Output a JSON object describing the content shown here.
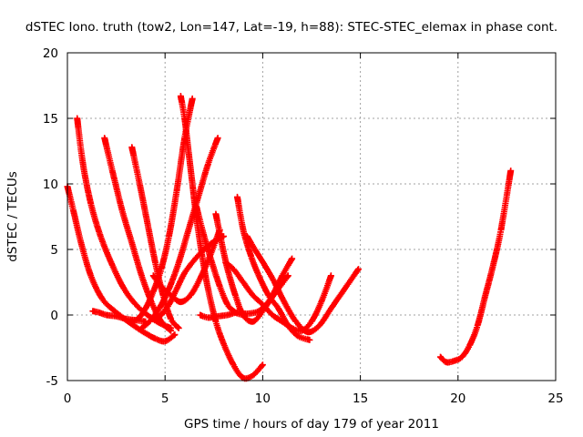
{
  "chart_data": {
    "type": "scatter",
    "title": "dSTEC Iono. truth (tow2, Lon=147, Lat=-19, h=88): STEC-STEC_elemax in phase cont.",
    "xlabel": "GPS time / hours of day 179 of year 2011",
    "ylabel": "dSTEC  / TECUs",
    "xlim": [
      0,
      25
    ],
    "ylim": [
      -5,
      20
    ],
    "xticks": [
      "0",
      "5",
      "10",
      "15",
      "20",
      "25"
    ],
    "yticks": [
      "-5",
      "0",
      "5",
      "10",
      "15",
      "20"
    ],
    "grid": true,
    "marker": "+",
    "color": "#ff0000",
    "series": [
      {
        "x": [
          0.0,
          0.3,
          0.7,
          1.2,
          1.8,
          2.5,
          3.2,
          3.9,
          4.5,
          5.0,
          5.5
        ],
        "y": [
          9.8,
          8.0,
          5.5,
          3.0,
          1.2,
          0.2,
          -0.6,
          -1.3,
          -1.8,
          -2.0,
          -1.5
        ]
      },
      {
        "x": [
          0.5,
          0.8,
          1.2,
          1.7,
          2.3,
          2.9,
          3.5,
          4.1,
          4.7,
          5.3
        ],
        "y": [
          15.0,
          11.5,
          8.5,
          6.0,
          3.8,
          2.0,
          0.8,
          0.0,
          -0.6,
          -1.0
        ]
      },
      {
        "x": [
          1.3,
          1.6,
          2.0,
          2.5,
          3.0,
          3.5,
          4.0
        ],
        "y": [
          0.3,
          0.2,
          0.0,
          -0.1,
          -0.3,
          -0.4,
          -0.5
        ]
      },
      {
        "x": [
          1.9,
          2.3,
          2.8,
          3.3,
          3.8,
          4.3,
          4.8,
          5.3
        ],
        "y": [
          13.5,
          11.0,
          8.0,
          5.5,
          3.0,
          1.0,
          -0.5,
          -1.2
        ]
      },
      {
        "x": [
          3.3,
          3.7,
          4.1,
          4.5,
          4.9,
          5.3,
          5.7
        ],
        "y": [
          12.8,
          10.0,
          7.0,
          4.0,
          1.5,
          -0.3,
          -1.0
        ]
      },
      {
        "x": [
          3.2,
          3.6,
          4.0,
          4.4,
          4.8,
          5.2,
          5.6,
          6.0,
          6.4
        ],
        "y": [
          -0.5,
          -0.3,
          0.5,
          1.8,
          3.5,
          6.0,
          9.5,
          13.5,
          16.5
        ]
      },
      {
        "x": [
          3.8,
          4.2,
          4.7,
          5.2,
          5.7,
          6.2,
          6.7,
          7.2,
          7.7
        ],
        "y": [
          -1.0,
          -0.5,
          0.5,
          2.0,
          4.0,
          6.5,
          9.0,
          11.5,
          13.5
        ]
      },
      {
        "x": [
          5.8,
          6.0,
          6.2,
          6.4,
          6.6,
          6.9,
          7.2,
          7.6,
          8.0,
          8.5,
          9.0,
          9.5,
          10.0
        ],
        "y": [
          16.7,
          15.0,
          12.5,
          10.0,
          7.5,
          4.5,
          2.0,
          -0.5,
          -2.2,
          -3.8,
          -4.8,
          -4.6,
          -3.8
        ]
      },
      {
        "x": [
          4.4,
          4.8,
          5.3,
          5.8,
          6.3,
          6.8,
          7.3,
          7.8
        ],
        "y": [
          3.0,
          2.2,
          1.5,
          1.0,
          1.5,
          2.8,
          4.5,
          6.5
        ]
      },
      {
        "x": [
          4.8,
          5.2,
          5.6,
          6.0,
          6.5,
          7.0,
          7.5,
          8.0
        ],
        "y": [
          0.0,
          0.8,
          2.0,
          3.2,
          4.2,
          5.0,
          5.6,
          6.0
        ]
      },
      {
        "x": [
          6.6,
          7.0,
          7.4,
          7.8,
          8.2,
          8.6,
          9.0
        ],
        "y": [
          8.3,
          6.0,
          4.0,
          2.2,
          0.8,
          0.2,
          0.0
        ]
      },
      {
        "x": [
          7.6,
          7.9,
          8.2,
          8.6,
          9.0,
          9.5,
          10.0,
          10.5,
          11.0,
          11.5
        ],
        "y": [
          7.7,
          5.5,
          3.5,
          1.5,
          0.0,
          -0.5,
          0.3,
          1.5,
          3.0,
          4.3
        ]
      },
      {
        "x": [
          8.1,
          8.5,
          9.0,
          9.5,
          10.0,
          10.5,
          11.0,
          11.5,
          12.0,
          12.5,
          13.0,
          13.5
        ],
        "y": [
          4.0,
          3.5,
          2.5,
          1.5,
          0.8,
          0.0,
          -0.5,
          -1.0,
          -1.2,
          -0.5,
          1.0,
          3.0
        ]
      },
      {
        "x": [
          8.7,
          9.0,
          9.4,
          9.8,
          10.3,
          10.8,
          11.3,
          11.8,
          12.4
        ],
        "y": [
          9.0,
          6.5,
          4.5,
          3.0,
          1.5,
          0.5,
          -0.8,
          -1.6,
          -1.9
        ]
      },
      {
        "x": [
          9.2,
          9.6,
          10.1,
          10.6,
          11.1,
          11.7,
          12.3,
          12.9,
          13.5,
          14.2,
          14.9
        ],
        "y": [
          6.0,
          5.0,
          3.8,
          2.5,
          1.0,
          -0.5,
          -1.3,
          -0.8,
          0.5,
          2.0,
          3.5
        ]
      },
      {
        "x": [
          6.8,
          7.2,
          7.7,
          8.2,
          8.7,
          9.2,
          9.8,
          10.3,
          10.8,
          11.3
        ],
        "y": [
          0.0,
          -0.2,
          -0.1,
          0.0,
          0.2,
          0.1,
          0.3,
          1.0,
          2.0,
          3.0
        ]
      },
      {
        "x": [
          19.1,
          19.4,
          19.8,
          20.2,
          20.6,
          21.0,
          21.4,
          21.8,
          22.2,
          22.7
        ],
        "y": [
          -3.2,
          -3.6,
          -3.5,
          -3.2,
          -2.3,
          -0.8,
          1.5,
          3.8,
          6.5,
          11.0
        ]
      }
    ]
  }
}
